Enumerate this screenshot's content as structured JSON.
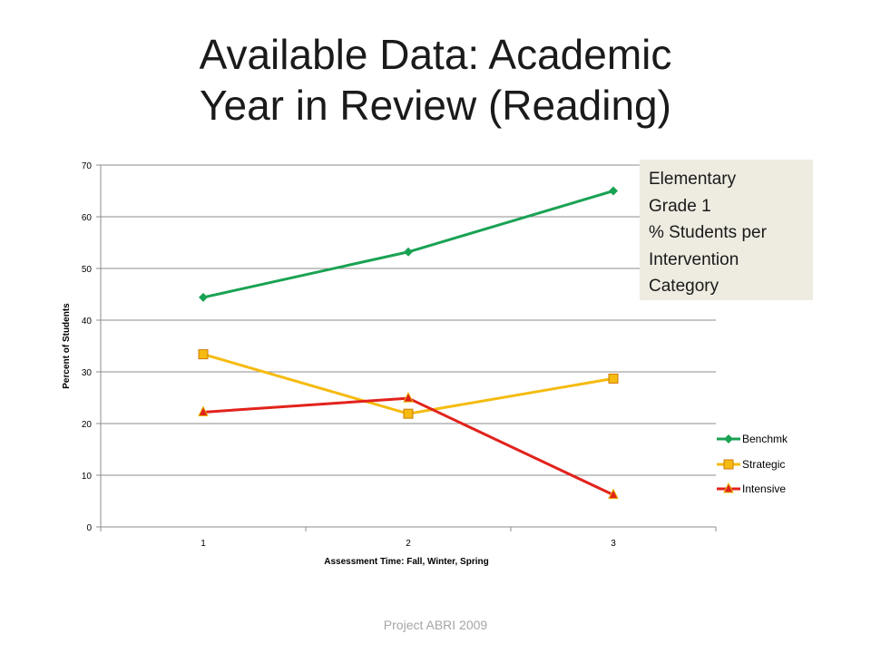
{
  "slide": {
    "title_lines": [
      "Available Data:  Academic",
      "Year in Review (Reading)"
    ],
    "footer": "Project ABRI 2009"
  },
  "info_box": {
    "lines": [
      "Elementary",
      "Grade 1",
      "% Students per",
      "Intervention",
      "Category"
    ]
  },
  "chart_data": {
    "type": "line",
    "categories": [
      "1",
      "2",
      "3"
    ],
    "xlabel": "Assessment Time:  Fall, Winter, Spring",
    "ylabel": "Percent of Students",
    "ylim": [
      0,
      70
    ],
    "yticks": [
      0,
      10,
      20,
      30,
      40,
      50,
      60,
      70
    ],
    "grid": true,
    "legend": "right",
    "series": [
      {
        "name": "Benchmk",
        "values": [
          44.4,
          53.2,
          65.0
        ],
        "color": "#1aa253",
        "marker": "diamond"
      },
      {
        "name": "Strategic",
        "values": [
          33.4,
          21.9,
          28.7
        ],
        "color": "#f5bb10",
        "marker": "square"
      },
      {
        "name": "Intensive",
        "values": [
          22.2,
          24.9,
          6.2
        ],
        "color": "#e2221c",
        "marker": "triangle"
      }
    ]
  }
}
